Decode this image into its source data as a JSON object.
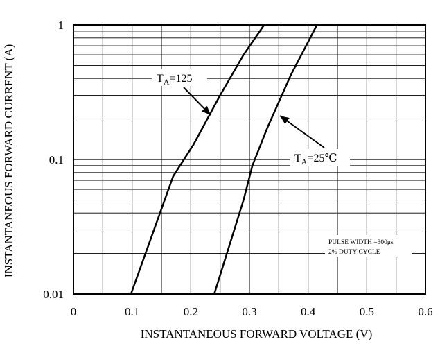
{
  "chart_data": {
    "type": "line",
    "xlabel": "INSTANTANEOUS FORWARD VOLTAGE (V)",
    "ylabel": "INSTANTANEOUS FORWARD CURRENT (A)",
    "xlim": [
      0,
      0.6
    ],
    "ylim": [
      0.01,
      1
    ],
    "yscale": "log",
    "grid": true,
    "x_ticks": [
      "0",
      "0.1",
      "0.2",
      "0.3",
      "0.4",
      "0.5",
      "0.6"
    ],
    "y_ticks": [
      "0.01",
      "0.1",
      "1"
    ],
    "series": [
      {
        "name": "T_A=125",
        "label_main": "T",
        "label_sub": "A",
        "label_rest": "=125",
        "points": [
          [
            0.098,
            0.01
          ],
          [
            0.17,
            0.075
          ],
          [
            0.205,
            0.13
          ],
          [
            0.25,
            0.3
          ],
          [
            0.29,
            0.6
          ],
          [
            0.325,
            1.0
          ]
        ]
      },
      {
        "name": "T_A=25℃",
        "label_main": "T",
        "label_sub": "A",
        "label_rest": "=25℃",
        "points": [
          [
            0.24,
            0.01
          ],
          [
            0.29,
            0.05
          ],
          [
            0.305,
            0.09
          ],
          [
            0.33,
            0.17
          ],
          [
            0.37,
            0.42
          ],
          [
            0.415,
            1.0
          ]
        ]
      }
    ],
    "annotations": {
      "note_line1": "PULSE WIDTH =300μs",
      "note_line2": "2% DUTY CYCLE"
    }
  }
}
